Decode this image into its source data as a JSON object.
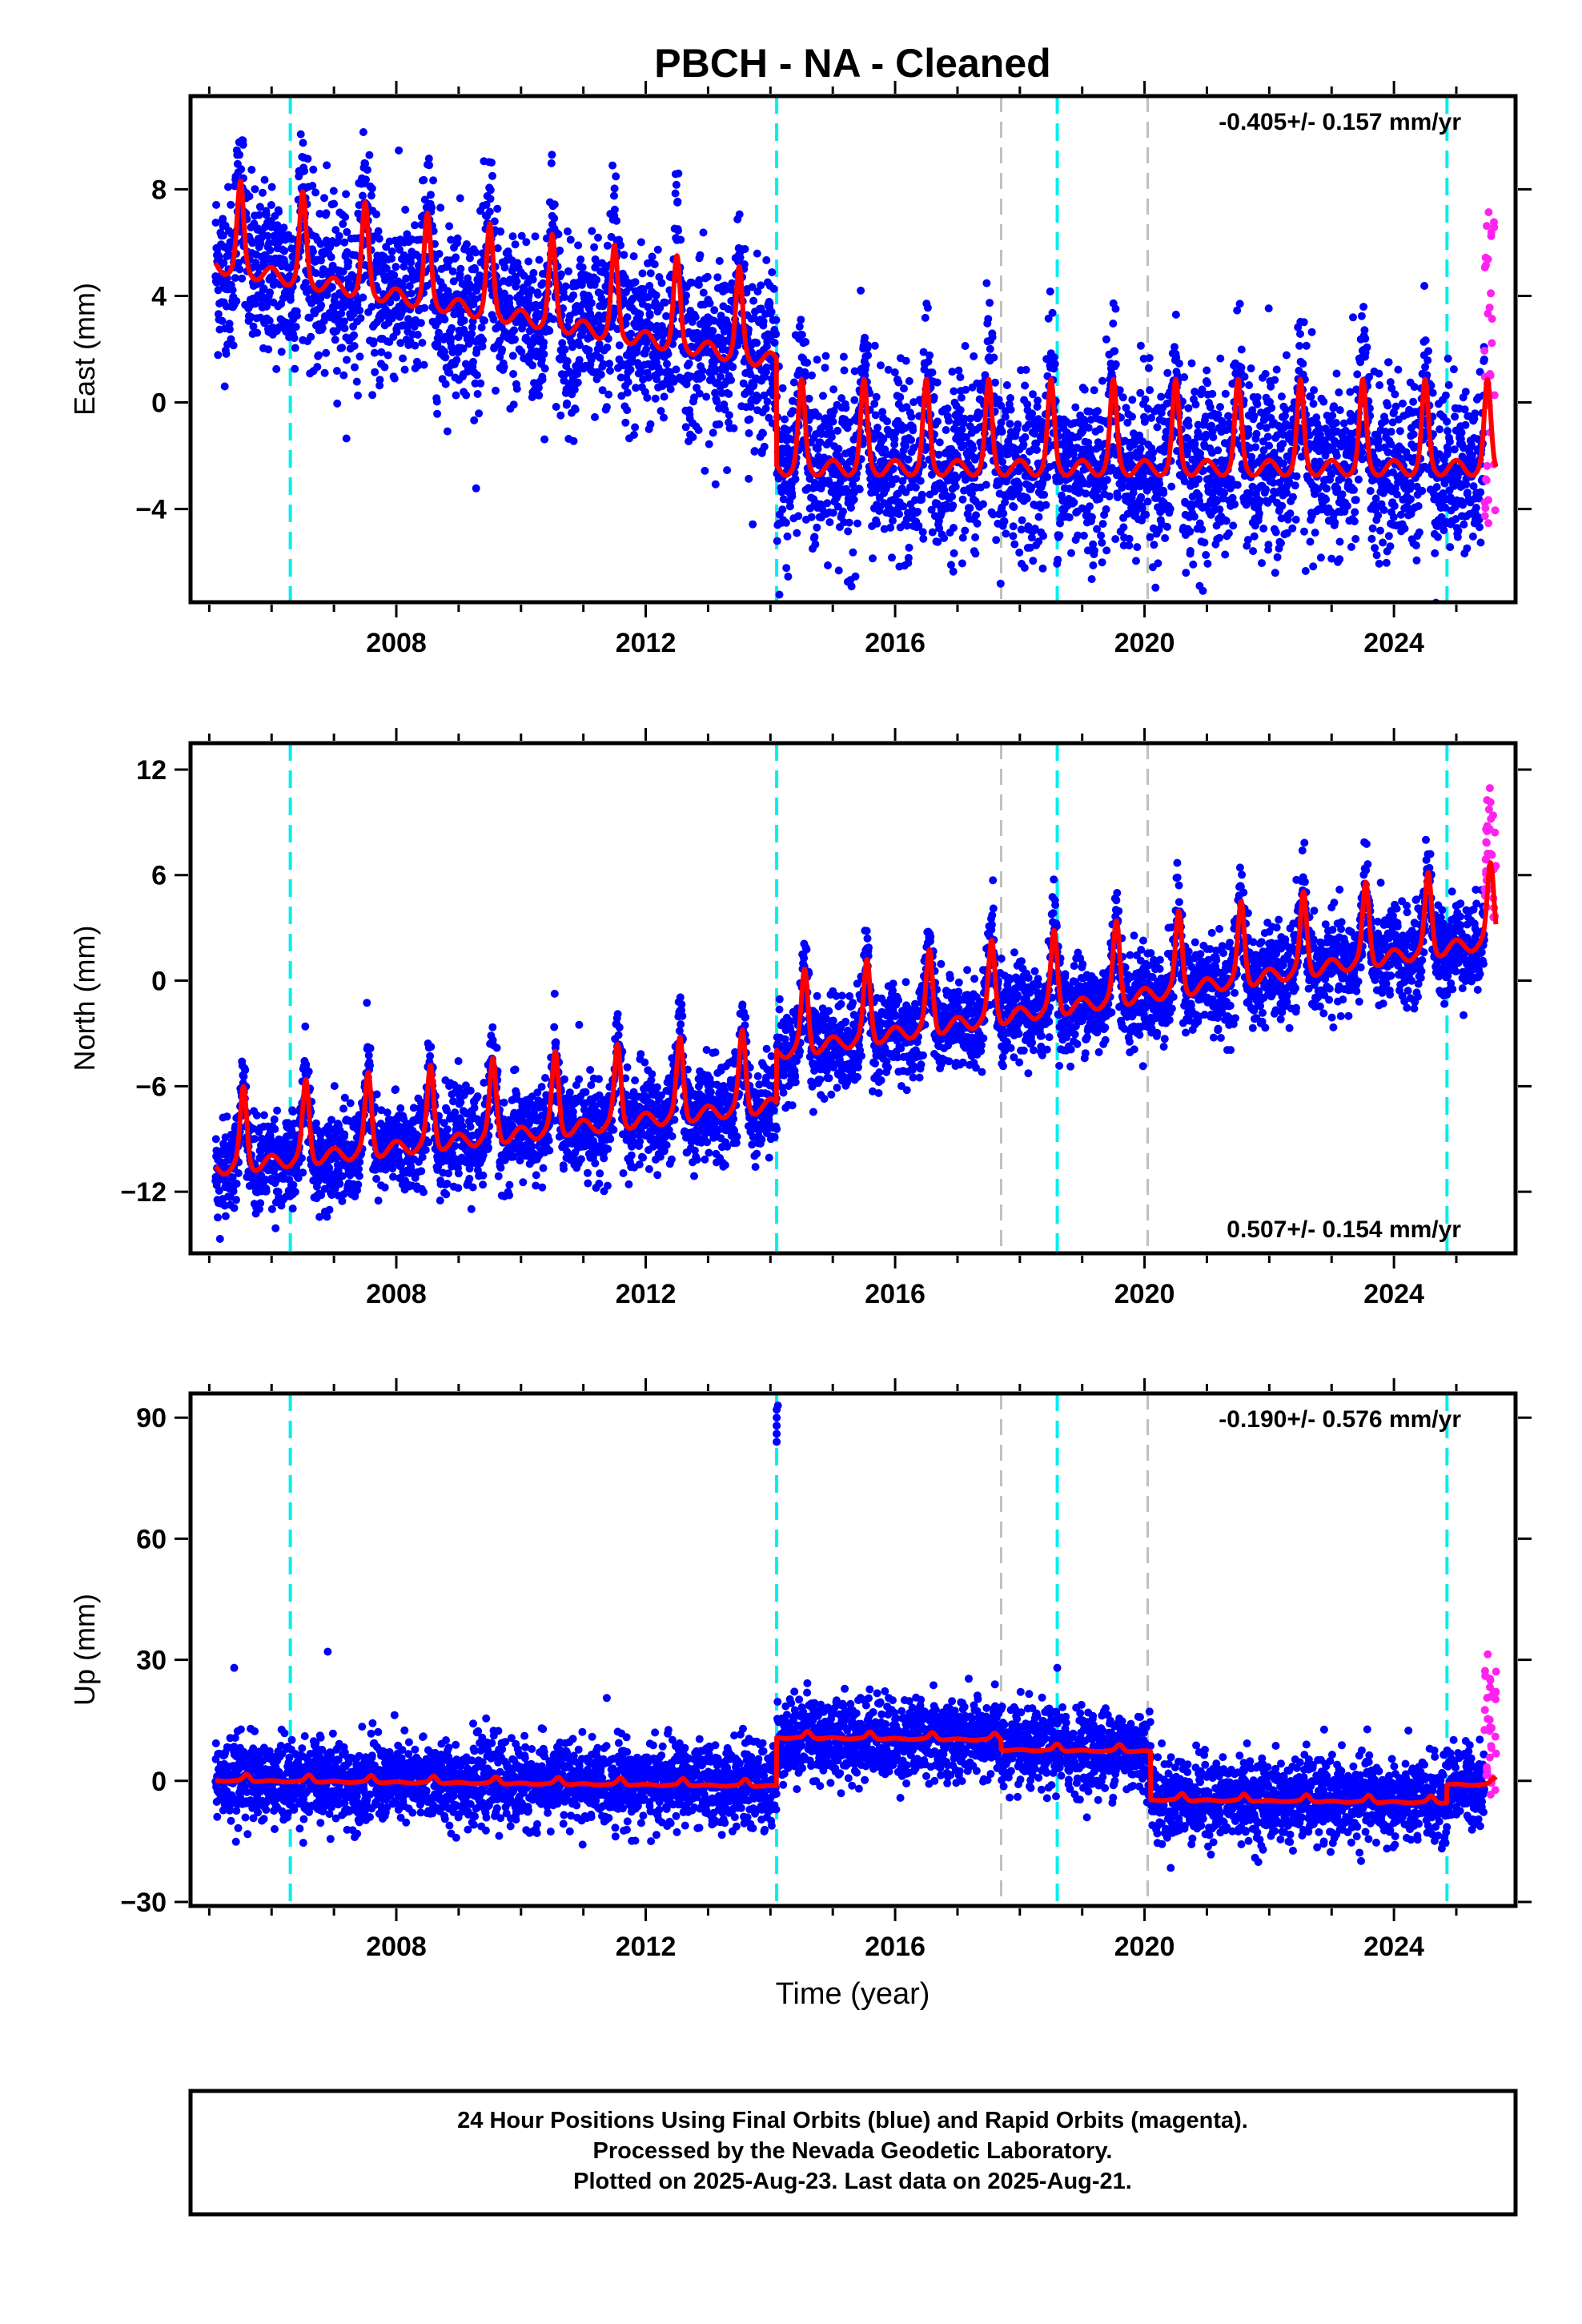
{
  "figure": {
    "title": "PBCH  - NA - Cleaned",
    "x_axis_label": "Time (year)",
    "footer_lines": [
      "24 Hour Positions Using Final Orbits (blue) and Rapid Orbits (magenta).",
      "Processed by the Nevada Geodetic Laboratory.",
      "Plotted on 2025-Aug-23. Last data on 2025-Aug-21."
    ]
  },
  "colors": {
    "final_orbits": "#0000ff",
    "rapid_orbits": "#ff22ee",
    "model_fit": "#ff0000",
    "equipment_change": "#00eeee",
    "earthquake": "#c0c0c0"
  },
  "chart_data": [
    {
      "type": "scatter",
      "panel": "east",
      "ylabel": "East (mm)",
      "rate_label": "-0.405+/- 0.157 mm/yr",
      "rate_position": "top-right",
      "xlim": [
        2004.7,
        2025.95
      ],
      "ylim": [
        -7.5,
        11.5
      ],
      "x_ticks": [
        2008,
        2012,
        2016,
        2020,
        2024
      ],
      "y_ticks": [
        -4,
        0,
        4,
        8
      ],
      "data_start": 2005.1,
      "data_end_final": 2025.45,
      "data_end_rapid": 2025.64,
      "trend": {
        "start_value": 6.0,
        "rate_before_2014": -0.4,
        "rate_after_2014": 0.0
      },
      "seasonal": {
        "amplitude": 1.9,
        "peak_phase": 0.5
      },
      "scatter_sigma": 1.6,
      "offsets": [
        {
          "epoch": 2014.1,
          "value": -4.0
        }
      ],
      "rapid_range": [
        -4.6,
        7.6
      ],
      "cyan_lines": [
        2006.3,
        2014.1,
        2018.6,
        2024.85
      ],
      "gray_lines": [
        2017.7,
        2020.05
      ]
    },
    {
      "type": "scatter",
      "panel": "north",
      "ylabel": "North (mm)",
      "rate_label": "0.507+/- 0.154 mm/yr",
      "rate_position": "bottom-right",
      "xlim": [
        2004.7,
        2025.95
      ],
      "ylim": [
        -15.5,
        13.5
      ],
      "x_ticks": [
        2008,
        2012,
        2016,
        2020,
        2024
      ],
      "y_ticks": [
        -12,
        -6,
        0,
        6,
        12
      ],
      "data_start": 2005.1,
      "data_end_final": 2025.45,
      "data_end_rapid": 2025.64,
      "trend": {
        "start_value": -9.5,
        "rate_before_2014": 0.4,
        "rate_after_2014": 0.55
      },
      "seasonal": {
        "amplitude": 2.6,
        "peak_phase": 0.55
      },
      "scatter_sigma": 1.3,
      "offsets": [
        {
          "epoch": 2014.1,
          "value": 3.0
        }
      ],
      "rapid_range": [
        3.6,
        11.0
      ],
      "cyan_lines": [
        2006.3,
        2014.1,
        2018.6,
        2024.85
      ],
      "gray_lines": [
        2017.7,
        2020.05
      ]
    },
    {
      "type": "scatter",
      "panel": "up",
      "ylabel": "Up (mm)",
      "rate_label": "-0.190+/- 0.576 mm/yr",
      "rate_position": "top-right",
      "xlim": [
        2004.7,
        2025.95
      ],
      "ylim": [
        -31,
        96
      ],
      "x_ticks": [
        2008,
        2012,
        2016,
        2020,
        2024
      ],
      "y_ticks": [
        -30,
        0,
        30,
        60,
        90
      ],
      "data_start": 2005.1,
      "data_end_final": 2025.45,
      "data_end_rapid": 2025.64,
      "trend": {
        "start_value": 0.5,
        "rate_before_2014": -0.15,
        "rate_after_2014": -0.15
      },
      "seasonal": {
        "amplitude": 1.0,
        "peak_phase": 0.6
      },
      "scatter_sigma": 5.0,
      "offsets": [
        {
          "epoch": 2014.1,
          "value": 12.0
        },
        {
          "epoch": 2017.7,
          "value": -2.5
        },
        {
          "epoch": 2020.1,
          "value": -12.0
        },
        {
          "epoch": 2024.85,
          "value": 4.5
        }
      ],
      "outliers": [
        {
          "x": 2014.1,
          "y": 84
        },
        {
          "x": 2014.1,
          "y": 86
        },
        {
          "x": 2014.1,
          "y": 88
        },
        {
          "x": 2014.1,
          "y": 90
        },
        {
          "x": 2014.1,
          "y": 92
        },
        {
          "x": 2014.12,
          "y": 93
        },
        {
          "x": 2005.4,
          "y": 28
        },
        {
          "x": 2006.9,
          "y": 32
        },
        {
          "x": 2018.6,
          "y": 28
        }
      ],
      "rapid_range": [
        -5,
        32
      ],
      "cyan_lines": [
        2006.3,
        2014.1,
        2018.6,
        2024.85
      ],
      "gray_lines": [
        2017.7,
        2020.05
      ]
    }
  ]
}
